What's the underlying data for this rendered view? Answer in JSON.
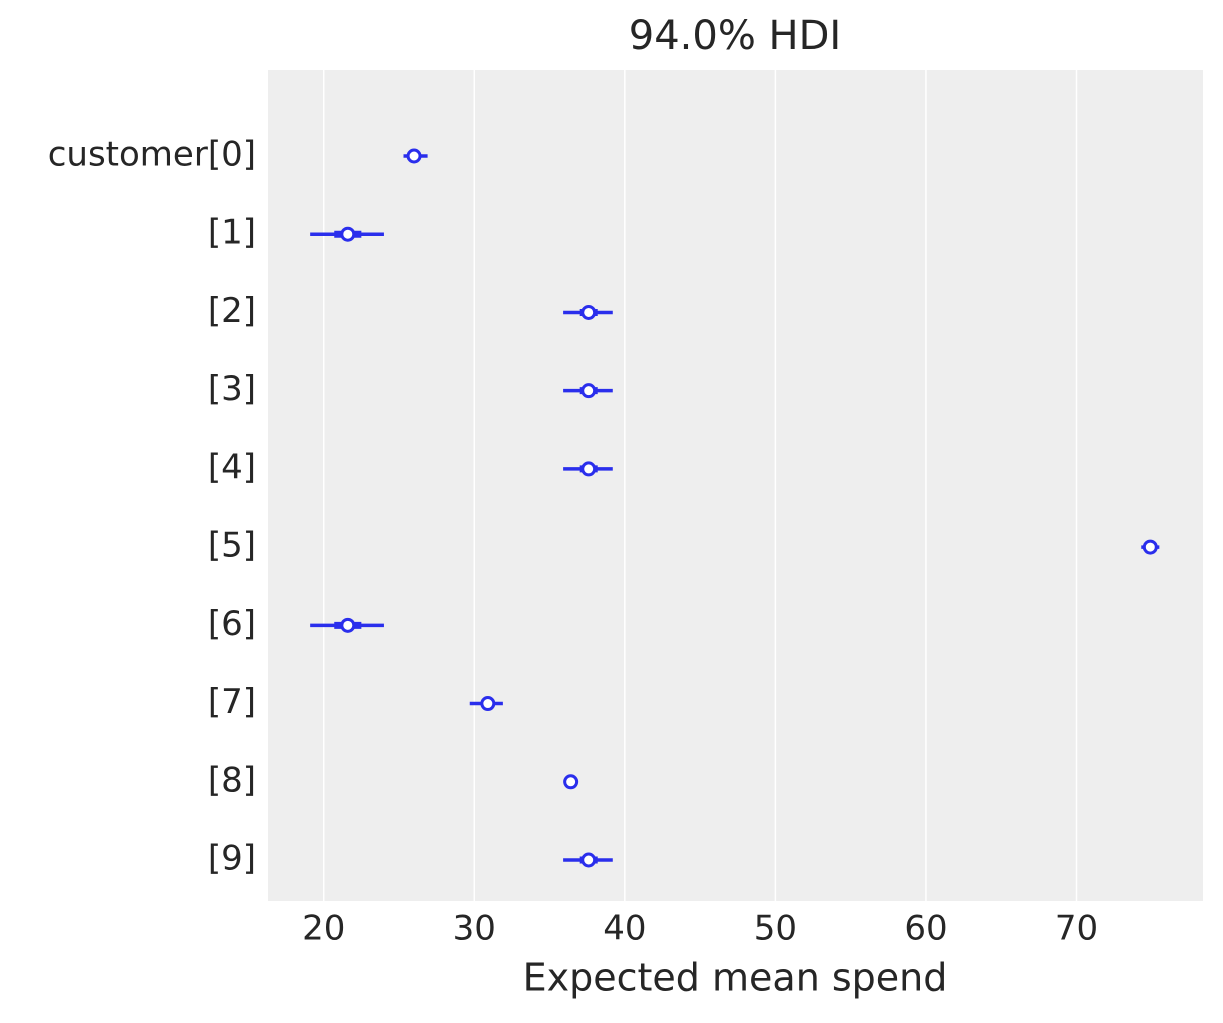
{
  "chart_data": {
    "type": "forest",
    "title": "94.0% HDI",
    "x_label": "Expected mean spend",
    "categories": [
      "customer[0]",
      "[1]",
      "[2]",
      "[3]",
      "[4]",
      "[5]",
      "[6]",
      "[7]",
      "[8]",
      "[9]"
    ],
    "values": [
      26.0,
      21.6,
      37.6,
      37.6,
      37.6,
      74.9,
      21.6,
      30.9,
      36.4,
      37.6
    ],
    "hdi_low": [
      25.3,
      19.1,
      35.9,
      35.9,
      35.9,
      74.3,
      19.1,
      29.7,
      36.3,
      35.9
    ],
    "hdi_high": [
      26.9,
      24.0,
      39.2,
      39.2,
      39.2,
      75.5,
      24.0,
      31.9,
      36.5,
      39.2
    ],
    "iqr_low": [
      25.7,
      20.7,
      37.0,
      37.0,
      37.0,
      74.7,
      20.7,
      30.5,
      36.35,
      37.0
    ],
    "iqr_high": [
      26.3,
      22.5,
      38.2,
      38.2,
      38.2,
      75.1,
      22.5,
      31.3,
      36.45,
      38.2
    ],
    "color": "#2a2eec",
    "xlim": [
      16.3,
      78.4
    ],
    "xticks": [
      20,
      30,
      40,
      50,
      60,
      70
    ],
    "grid": true
  }
}
